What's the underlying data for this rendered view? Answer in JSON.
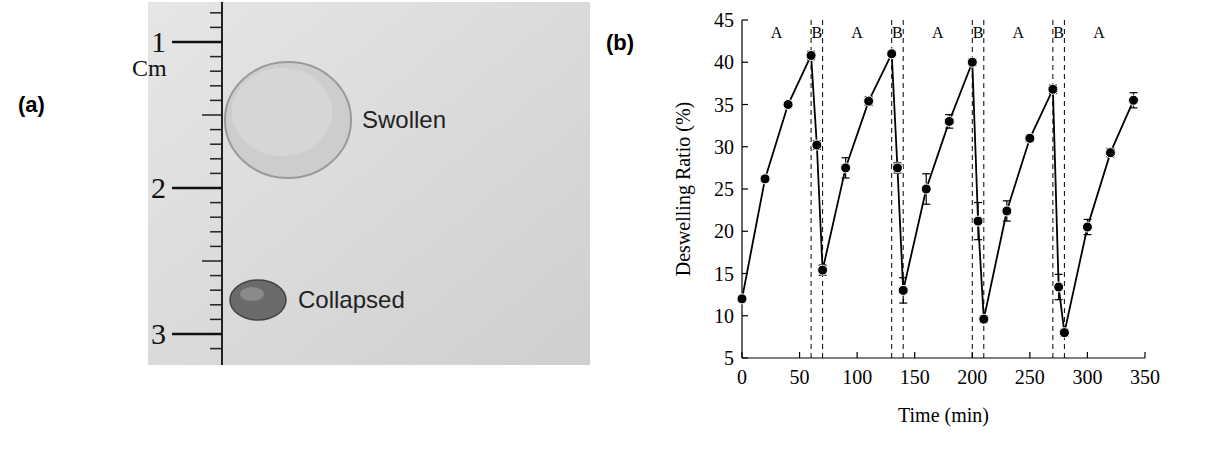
{
  "panel_a": {
    "letter": "(a)",
    "ruler": {
      "unit": "Cm",
      "ticks": [
        1,
        2,
        3
      ]
    },
    "samples": [
      "Swollen",
      "Collapsed"
    ]
  },
  "chart_data": {
    "type": "line",
    "panel": "(b)",
    "x_label": "Time (min)",
    "y_label": "Deswelling Ratio (%)",
    "x": [
      0,
      20,
      40,
      60,
      65,
      70,
      90,
      110,
      130,
      135,
      140,
      160,
      180,
      200,
      205,
      210,
      230,
      250,
      270,
      275,
      280,
      300,
      320,
      340
    ],
    "series": [
      {
        "color": "#000000",
        "marker": "circle",
        "line_style": "solid",
        "values": [
          12,
          26.2,
          35,
          40.8,
          30.2,
          15.4,
          27.5,
          35.4,
          41,
          27.5,
          13,
          25,
          33,
          40,
          21.2,
          9.6,
          22.4,
          31,
          36.8,
          13.4,
          8,
          20.5,
          29.3,
          35.5
        ],
        "errors": [
          0.3,
          0.3,
          0.3,
          0.5,
          0.5,
          0.6,
          1.2,
          0.5,
          0.3,
          0.6,
          1.5,
          1.8,
          0.8,
          0.4,
          2.2,
          0.4,
          1.2,
          0.4,
          0.5,
          1.5,
          0.4,
          0.9,
          0.5,
          0.9
        ]
      }
    ],
    "xlim": [
      0,
      350
    ],
    "xticks": [
      0,
      50,
      100,
      150,
      200,
      250,
      300,
      350
    ],
    "ylim": [
      5,
      45
    ],
    "yticks": [
      5,
      10,
      15,
      20,
      25,
      30,
      35,
      40,
      45
    ],
    "grid": false,
    "phase_boundaries": [
      60,
      70,
      130,
      140,
      200,
      210,
      270,
      280
    ],
    "annotations": [
      {
        "text": "A",
        "x": 30
      },
      {
        "text": "B",
        "x": 65
      },
      {
        "text": "A",
        "x": 100
      },
      {
        "text": "B",
        "x": 135
      },
      {
        "text": "A",
        "x": 170
      },
      {
        "text": "B",
        "x": 205
      },
      {
        "text": "A",
        "x": 240
      },
      {
        "text": "B",
        "x": 275
      },
      {
        "text": "A",
        "x": 310
      }
    ]
  }
}
